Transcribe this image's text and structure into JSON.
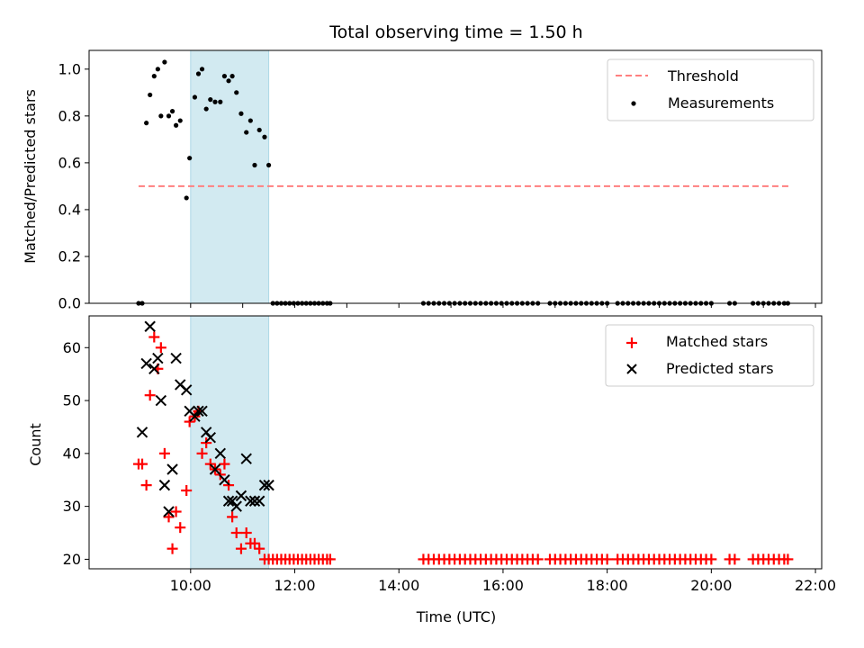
{
  "chart_data": {
    "title": "Total observing time = 1.50 h",
    "shaded_interval_hours": [
      10.0,
      11.5
    ],
    "x_tick_labels": [
      "10:00",
      "12:00",
      "14:00",
      "16:00",
      "18:00",
      "20:00",
      "22:00"
    ],
    "xlabel": "Time (UTC)",
    "panels": [
      {
        "type": "scatter",
        "ylabel": "Matched/Predicted stars",
        "xlim_hours": [
          8.05,
          22.12
        ],
        "ylim": [
          0.0,
          1.08
        ],
        "y_ticks": [
          "0.0",
          "0.2",
          "0.4",
          "0.6",
          "0.8",
          "1.0"
        ],
        "legend_position": "top-right",
        "threshold": {
          "name": "Threshold",
          "value": 0.5,
          "x_range_hours": [
            9.0,
            21.5
          ],
          "color": "#ff7f7f"
        },
        "series": [
          {
            "name": "Measurements",
            "color": "#000000",
            "x_hours": [
              9.0,
              9.07,
              9.15,
              9.22,
              9.3,
              9.37,
              9.43,
              9.5,
              9.58,
              9.65,
              9.72,
              9.8,
              9.92,
              9.98,
              10.08,
              10.15,
              10.22,
              10.3,
              10.38,
              10.47,
              10.57,
              10.65,
              10.73,
              10.8,
              10.88,
              10.97,
              11.07,
              11.15,
              11.23,
              11.32,
              11.42,
              11.5
            ],
            "y": [
              0.0,
              0.0,
              0.77,
              0.89,
              0.97,
              1.0,
              0.8,
              1.03,
              0.8,
              0.82,
              0.76,
              0.78,
              0.45,
              0.62,
              0.88,
              0.98,
              1.0,
              0.83,
              0.87,
              0.86,
              0.86,
              0.97,
              0.95,
              0.97,
              0.9,
              0.81,
              0.73,
              0.78,
              0.59,
              0.74,
              0.71,
              0.59
            ]
          }
        ],
        "zero_markers": {
          "value": 0.0,
          "x_hours": [
            11.58,
            11.66,
            11.74,
            11.82,
            11.9,
            11.98,
            12.06,
            12.14,
            12.22,
            12.3,
            12.38,
            12.46,
            12.54,
            12.62,
            12.68,
            14.47,
            14.57,
            14.67,
            14.77,
            14.87,
            14.97,
            15.07,
            15.17,
            15.27,
            15.37,
            15.47,
            15.57,
            15.67,
            15.77,
            15.87,
            15.97,
            16.07,
            16.17,
            16.27,
            16.37,
            16.47,
            16.57,
            16.67,
            16.9,
            17.0,
            17.1,
            17.2,
            17.3,
            17.4,
            17.5,
            17.6,
            17.7,
            17.8,
            17.9,
            18.0,
            18.2,
            18.3,
            18.4,
            18.5,
            18.6,
            18.7,
            18.8,
            18.9,
            19.0,
            19.1,
            19.2,
            19.3,
            19.4,
            19.5,
            19.6,
            19.7,
            19.8,
            19.9,
            20.0,
            20.35,
            20.45,
            20.8,
            20.9,
            21.0,
            21.1,
            21.2,
            21.3,
            21.4,
            21.47
          ]
        }
      },
      {
        "type": "scatter",
        "ylabel": "Count",
        "xlim_hours": [
          8.05,
          22.12
        ],
        "ylim": [
          18.2,
          66
        ],
        "y_ticks": [
          "20",
          "30",
          "40",
          "50",
          "60"
        ],
        "legend_position": "top-right",
        "series": [
          {
            "name": "Matched stars",
            "marker": "plus",
            "color": "#ff0000",
            "x_hours": [
              9.0,
              9.07,
              9.15,
              9.22,
              9.3,
              9.37,
              9.43,
              9.5,
              9.58,
              9.65,
              9.72,
              9.8,
              9.92,
              9.98,
              10.08,
              10.15,
              10.22,
              10.3,
              10.38,
              10.47,
              10.57,
              10.65,
              10.73,
              10.8,
              10.88,
              10.97,
              11.07,
              11.15,
              11.23,
              11.32,
              11.42,
              11.5
            ],
            "y": [
              38,
              38,
              34,
              51,
              62,
              56,
              60,
              40,
              28,
              22,
              29,
              26,
              33,
              46,
              47,
              48,
              40,
              42,
              38,
              37,
              36,
              38,
              34,
              28,
              25,
              22,
              25,
              23,
              23,
              22,
              20,
              20
            ]
          },
          {
            "name": "Predicted stars",
            "marker": "x",
            "color": "#000000",
            "x_hours": [
              9.07,
              9.15,
              9.22,
              9.3,
              9.37,
              9.43,
              9.5,
              9.58,
              9.65,
              9.72,
              9.8,
              9.92,
              9.98,
              10.08,
              10.15,
              10.22,
              10.3,
              10.38,
              10.47,
              10.57,
              10.65,
              10.73,
              10.8,
              10.88,
              10.97,
              11.07,
              11.15,
              11.23,
              11.32,
              11.42,
              11.5
            ],
            "y": [
              44,
              57,
              64,
              56,
              58,
              50,
              34,
              29,
              37,
              58,
              53,
              52,
              48,
              47,
              48,
              48,
              44,
              43,
              37,
              40,
              35,
              31,
              31,
              30,
              32,
              39,
              31,
              31,
              31,
              34,
              34
            ]
          }
        ],
        "matched_floor_markers": {
          "value": 20,
          "x_hours": [
            11.58,
            11.66,
            11.74,
            11.82,
            11.9,
            11.98,
            12.06,
            12.14,
            12.22,
            12.3,
            12.38,
            12.46,
            12.54,
            12.62,
            12.68,
            14.47,
            14.57,
            14.67,
            14.77,
            14.87,
            14.97,
            15.07,
            15.17,
            15.27,
            15.37,
            15.47,
            15.57,
            15.67,
            15.77,
            15.87,
            15.97,
            16.07,
            16.17,
            16.27,
            16.37,
            16.47,
            16.57,
            16.67,
            16.9,
            17.0,
            17.1,
            17.2,
            17.3,
            17.4,
            17.5,
            17.6,
            17.7,
            17.8,
            17.9,
            18.0,
            18.2,
            18.3,
            18.4,
            18.5,
            18.6,
            18.7,
            18.8,
            18.9,
            19.0,
            19.1,
            19.2,
            19.3,
            19.4,
            19.5,
            19.6,
            19.7,
            19.8,
            19.9,
            20.0,
            20.35,
            20.45,
            20.8,
            20.9,
            21.0,
            21.1,
            21.2,
            21.3,
            21.4,
            21.47
          ]
        }
      }
    ],
    "colors": {
      "shade": "#add8e6",
      "threshold": "#ff7f7f",
      "matched": "#ff0000",
      "predicted": "#000000"
    }
  }
}
